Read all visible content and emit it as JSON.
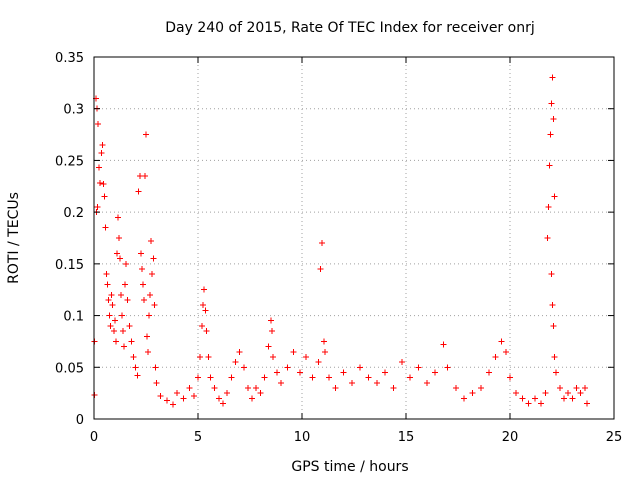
{
  "chart_data": {
    "type": "scatter",
    "title": "Day 240 of 2015, Rate Of TEC Index for receiver onrj",
    "xlabel": "GPS time / hours",
    "ylabel": "ROTI / TECUs",
    "xlim": [
      0,
      25
    ],
    "ylim": [
      0,
      0.35
    ],
    "xticks": [
      0,
      5,
      10,
      15,
      20,
      25
    ],
    "xtick_labels": [
      "0",
      "5",
      "10",
      "15",
      "20",
      "25"
    ],
    "yticks": [
      0,
      0.05,
      0.1,
      0.15,
      0.2,
      0.25,
      0.3,
      0.35
    ],
    "ytick_labels": [
      "0",
      "0.05",
      "0.1",
      "0.15",
      "0.2",
      "0.25",
      "0.3",
      "0.35"
    ],
    "grid": true,
    "marker": "plus",
    "color": "#ff0000",
    "series": [
      {
        "name": "ROTI",
        "points": [
          [
            0.02,
            0.023
          ],
          [
            0.03,
            0.075
          ],
          [
            0.1,
            0.31
          ],
          [
            0.15,
            0.3
          ],
          [
            0.2,
            0.285
          ],
          [
            0.25,
            0.243
          ],
          [
            0.3,
            0.228
          ],
          [
            0.12,
            0.2
          ],
          [
            0.18,
            0.205
          ],
          [
            0.35,
            0.257
          ],
          [
            0.4,
            0.265
          ],
          [
            0.45,
            0.227
          ],
          [
            0.5,
            0.215
          ],
          [
            0.55,
            0.185
          ],
          [
            0.6,
            0.14
          ],
          [
            0.65,
            0.13
          ],
          [
            0.7,
            0.115
          ],
          [
            0.75,
            0.1
          ],
          [
            0.8,
            0.09
          ],
          [
            0.85,
            0.12
          ],
          [
            0.9,
            0.11
          ],
          [
            0.95,
            0.085
          ],
          [
            1.0,
            0.095
          ],
          [
            1.05,
            0.075
          ],
          [
            1.1,
            0.16
          ],
          [
            1.15,
            0.195
          ],
          [
            1.2,
            0.175
          ],
          [
            1.25,
            0.155
          ],
          [
            1.3,
            0.12
          ],
          [
            1.35,
            0.1
          ],
          [
            1.4,
            0.085
          ],
          [
            1.45,
            0.07
          ],
          [
            1.5,
            0.13
          ],
          [
            1.55,
            0.15
          ],
          [
            1.6,
            0.115
          ],
          [
            1.7,
            0.09
          ],
          [
            1.8,
            0.075
          ],
          [
            1.9,
            0.06
          ],
          [
            2.0,
            0.05
          ],
          [
            2.1,
            0.042
          ],
          [
            2.15,
            0.22
          ],
          [
            2.2,
            0.235
          ],
          [
            2.25,
            0.16
          ],
          [
            2.3,
            0.145
          ],
          [
            2.35,
            0.13
          ],
          [
            2.4,
            0.115
          ],
          [
            2.45,
            0.235
          ],
          [
            2.5,
            0.275
          ],
          [
            2.55,
            0.08
          ],
          [
            2.6,
            0.065
          ],
          [
            2.65,
            0.1
          ],
          [
            2.7,
            0.12
          ],
          [
            2.75,
            0.172
          ],
          [
            2.8,
            0.14
          ],
          [
            2.85,
            0.155
          ],
          [
            2.9,
            0.11
          ],
          [
            2.95,
            0.05
          ],
          [
            3.0,
            0.035
          ],
          [
            3.2,
            0.022
          ],
          [
            3.5,
            0.018
          ],
          [
            3.8,
            0.014
          ],
          [
            4.0,
            0.025
          ],
          [
            4.3,
            0.02
          ],
          [
            4.6,
            0.03
          ],
          [
            4.8,
            0.022
          ],
          [
            5.0,
            0.04
          ],
          [
            5.1,
            0.06
          ],
          [
            5.2,
            0.09
          ],
          [
            5.25,
            0.11
          ],
          [
            5.3,
            0.125
          ],
          [
            5.35,
            0.105
          ],
          [
            5.4,
            0.085
          ],
          [
            5.5,
            0.06
          ],
          [
            5.6,
            0.04
          ],
          [
            5.8,
            0.03
          ],
          [
            6.0,
            0.02
          ],
          [
            6.2,
            0.015
          ],
          [
            6.4,
            0.025
          ],
          [
            6.6,
            0.04
          ],
          [
            6.8,
            0.055
          ],
          [
            7.0,
            0.065
          ],
          [
            7.2,
            0.05
          ],
          [
            7.4,
            0.03
          ],
          [
            7.6,
            0.02
          ],
          [
            7.8,
            0.03
          ],
          [
            8.0,
            0.025
          ],
          [
            8.2,
            0.04
          ],
          [
            8.4,
            0.07
          ],
          [
            8.5,
            0.095
          ],
          [
            8.55,
            0.085
          ],
          [
            8.6,
            0.06
          ],
          [
            8.8,
            0.045
          ],
          [
            9.0,
            0.035
          ],
          [
            9.3,
            0.05
          ],
          [
            9.6,
            0.065
          ],
          [
            9.9,
            0.045
          ],
          [
            10.2,
            0.06
          ],
          [
            10.5,
            0.04
          ],
          [
            10.8,
            0.055
          ],
          [
            10.9,
            0.145
          ],
          [
            10.95,
            0.17
          ],
          [
            11.05,
            0.075
          ],
          [
            11.1,
            0.065
          ],
          [
            11.3,
            0.04
          ],
          [
            11.6,
            0.03
          ],
          [
            12.0,
            0.045
          ],
          [
            12.4,
            0.035
          ],
          [
            12.8,
            0.05
          ],
          [
            13.2,
            0.04
          ],
          [
            13.6,
            0.035
          ],
          [
            14.0,
            0.045
          ],
          [
            14.4,
            0.03
          ],
          [
            14.8,
            0.055
          ],
          [
            15.2,
            0.04
          ],
          [
            15.6,
            0.05
          ],
          [
            16.0,
            0.035
          ],
          [
            16.4,
            0.045
          ],
          [
            16.8,
            0.072
          ],
          [
            17.0,
            0.05
          ],
          [
            17.4,
            0.03
          ],
          [
            17.8,
            0.02
          ],
          [
            18.2,
            0.025
          ],
          [
            18.6,
            0.03
          ],
          [
            19.0,
            0.045
          ],
          [
            19.3,
            0.06
          ],
          [
            19.6,
            0.075
          ],
          [
            19.8,
            0.065
          ],
          [
            20.0,
            0.04
          ],
          [
            20.3,
            0.025
          ],
          [
            20.6,
            0.02
          ],
          [
            20.9,
            0.015
          ],
          [
            21.2,
            0.02
          ],
          [
            21.5,
            0.015
          ],
          [
            21.7,
            0.025
          ],
          [
            21.8,
            0.175
          ],
          [
            21.85,
            0.205
          ],
          [
            21.9,
            0.245
          ],
          [
            21.95,
            0.275
          ],
          [
            22.0,
            0.305
          ],
          [
            22.05,
            0.33
          ],
          [
            22.1,
            0.29
          ],
          [
            22.15,
            0.215
          ],
          [
            22.0,
            0.14
          ],
          [
            22.05,
            0.11
          ],
          [
            22.1,
            0.09
          ],
          [
            22.15,
            0.06
          ],
          [
            22.2,
            0.045
          ],
          [
            22.4,
            0.03
          ],
          [
            22.6,
            0.02
          ],
          [
            22.8,
            0.025
          ],
          [
            23.0,
            0.02
          ],
          [
            23.2,
            0.03
          ],
          [
            23.4,
            0.025
          ],
          [
            23.6,
            0.03
          ],
          [
            23.7,
            0.015
          ]
        ]
      }
    ]
  }
}
